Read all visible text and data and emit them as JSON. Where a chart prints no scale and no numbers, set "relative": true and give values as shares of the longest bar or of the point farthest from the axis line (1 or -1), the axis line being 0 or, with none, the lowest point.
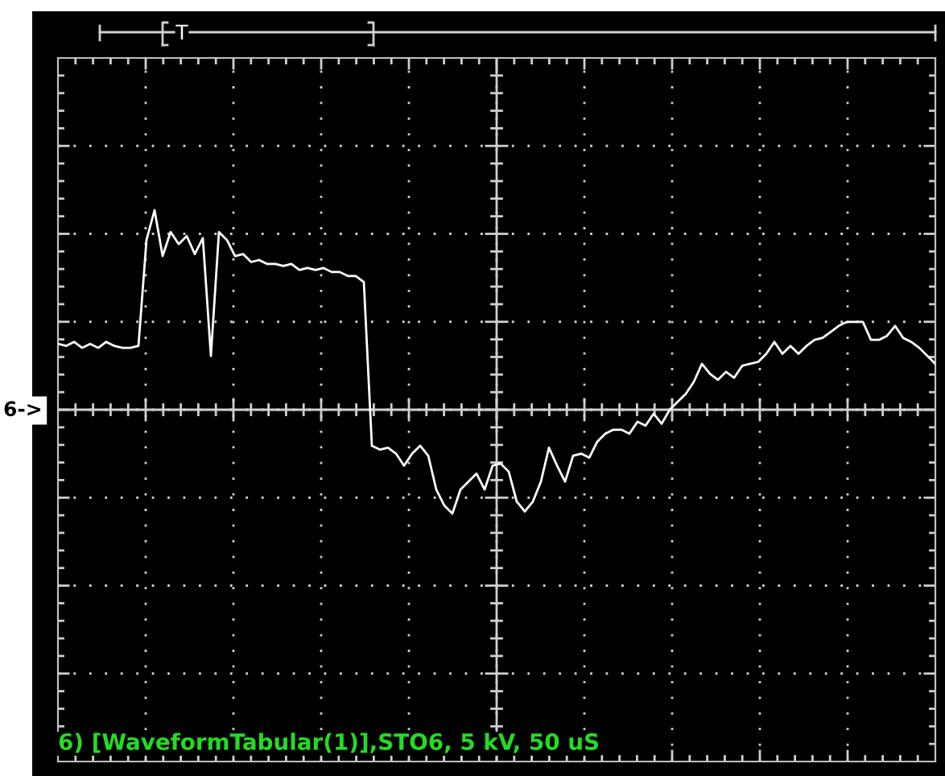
{
  "chart_data": {
    "type": "line",
    "relative": true,
    "grid": true,
    "legend": false,
    "marker": "none",
    "line_style": "solid",
    "annotations": [
      "6->",
      "T",
      "6) [WaveformTabular(1)],STO6, 5 kV, 50 uS"
    ],
    "categories": [
      null,
      null,
      null,
      null,
      null,
      null,
      null,
      null,
      null,
      null,
      null,
      null,
      null,
      null,
      null,
      null,
      null,
      null,
      null,
      null,
      null,
      null,
      null,
      null,
      null,
      null,
      null,
      null,
      null,
      null,
      null,
      null,
      null,
      null,
      null,
      null,
      null,
      null,
      null,
      null,
      null,
      null,
      null,
      null,
      null,
      null,
      null,
      null,
      null,
      null,
      null,
      null,
      null,
      null,
      null,
      null,
      null,
      null,
      null,
      null,
      null,
      null,
      null,
      null,
      null,
      null,
      null,
      null,
      null,
      null,
      null,
      null,
      null,
      null,
      null,
      null,
      null,
      null,
      null,
      null,
      null,
      null,
      null,
      null,
      null,
      null,
      null,
      null,
      null,
      null,
      null,
      null,
      null,
      null,
      null,
      null,
      null,
      null,
      null,
      null,
      null,
      null,
      null,
      null,
      null,
      null,
      null,
      null,
      null,
      null
    ],
    "series": [
      {
        "color": "#ffffff",
        "values": [
          0.33,
          0.32,
          0.34,
          0.31,
          0.33,
          0.31,
          0.34,
          0.32,
          0.31,
          0.31,
          0.32,
          0.85,
          1.0,
          0.77,
          0.89,
          0.83,
          0.87,
          0.78,
          0.86,
          0.27,
          0.89,
          0.85,
          0.77,
          0.78,
          0.74,
          0.75,
          0.73,
          0.73,
          0.72,
          0.73,
          0.7,
          0.71,
          0.7,
          0.71,
          0.69,
          0.69,
          0.67,
          0.67,
          0.64,
          -0.18,
          -0.2,
          -0.19,
          -0.22,
          -0.28,
          -0.22,
          -0.18,
          -0.23,
          -0.4,
          -0.48,
          -0.52,
          -0.4,
          -0.36,
          -0.32,
          -0.4,
          -0.28,
          -0.27,
          -0.31,
          -0.46,
          -0.51,
          -0.46,
          -0.36,
          -0.19,
          -0.28,
          -0.36,
          -0.23,
          -0.22,
          -0.24,
          -0.16,
          -0.12,
          -0.1,
          -0.1,
          -0.12,
          -0.06,
          -0.08,
          -0.02,
          -0.07,
          0.0,
          0.04,
          0.08,
          0.14,
          0.23,
          0.18,
          0.15,
          0.19,
          0.16,
          0.22,
          0.23,
          0.24,
          0.28,
          0.34,
          0.28,
          0.32,
          0.28,
          0.32,
          0.35,
          0.36,
          0.39,
          0.42,
          0.44,
          0.44,
          0.44,
          0.35,
          0.35,
          0.37,
          0.42,
          0.36,
          0.34,
          0.31,
          0.27,
          0.23
        ]
      }
    ]
  }
}
